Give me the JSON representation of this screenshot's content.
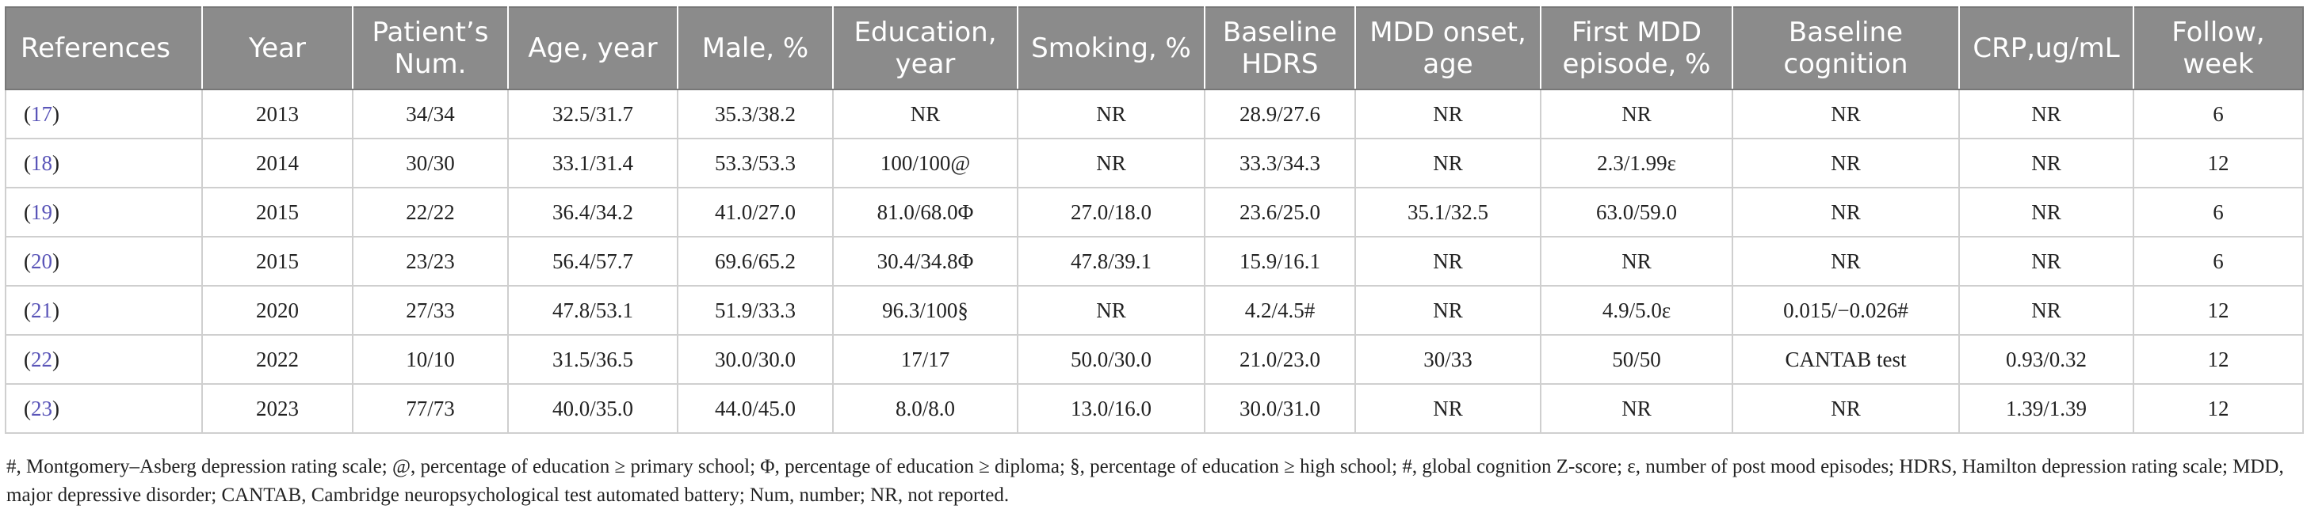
{
  "table": {
    "headers": [
      "References",
      "Year",
      "Patient’s Num.",
      "Age, year",
      "Male, %",
      "Education, year",
      "Smoking, %",
      "Baseline HDRS",
      "MDD onset, age",
      "First MDD episode, %",
      "Baseline cognition",
      "CRP,ug/mL",
      "Follow, week"
    ],
    "rows": [
      {
        "ref": "17",
        "cells": [
          "2013",
          "34/34",
          "32.5/31.7",
          "35.3/38.2",
          "NR",
          "NR",
          "28.9/27.6",
          "NR",
          "NR",
          "NR",
          "NR",
          "6"
        ]
      },
      {
        "ref": "18",
        "cells": [
          "2014",
          "30/30",
          "33.1/31.4",
          "53.3/53.3",
          "100/100@",
          "NR",
          "33.3/34.3",
          "NR",
          "2.3/1.99ε",
          "NR",
          "NR",
          "12"
        ]
      },
      {
        "ref": "19",
        "cells": [
          "2015",
          "22/22",
          "36.4/34.2",
          "41.0/27.0",
          "81.0/68.0Φ",
          "27.0/18.0",
          "23.6/25.0",
          "35.1/32.5",
          "63.0/59.0",
          "NR",
          "NR",
          "6"
        ]
      },
      {
        "ref": "20",
        "cells": [
          "2015",
          "23/23",
          "56.4/57.7",
          "69.6/65.2",
          "30.4/34.8Φ",
          "47.8/39.1",
          "15.9/16.1",
          "NR",
          "NR",
          "NR",
          "NR",
          "6"
        ]
      },
      {
        "ref": "21",
        "cells": [
          "2020",
          "27/33",
          "47.8/53.1",
          "51.9/33.3",
          "96.3/100§",
          "NR",
          "4.2/4.5#",
          "NR",
          "4.9/5.0ε",
          "0.015/−0.026#",
          "NR",
          "12"
        ]
      },
      {
        "ref": "22",
        "cells": [
          "2022",
          "10/10",
          "31.5/36.5",
          "30.0/30.0",
          "17/17",
          "50.0/30.0",
          "21.0/23.0",
          "30/33",
          "50/50",
          "CANTAB test",
          "0.93/0.32",
          "12"
        ]
      },
      {
        "ref": "23",
        "cells": [
          "2023",
          "77/73",
          "40.0/35.0",
          "44.0/45.0",
          "8.0/8.0",
          "13.0/16.0",
          "30.0/31.0",
          "NR",
          "NR",
          "NR",
          "1.39/1.39",
          "12"
        ]
      }
    ]
  },
  "footnote": "#, Montgomery–Asberg depression rating scale; @, percentage of education ≥ primary school; Φ, percentage of education ≥ diploma; §, percentage of education ≥ high school; #, global cognition Z-score; ε, number of post mood episodes; HDRS, Hamilton depression rating scale; MDD, major depressive disorder; CANTAB, Cambridge neuropsychological test automated battery; Num, number; NR, not reported."
}
